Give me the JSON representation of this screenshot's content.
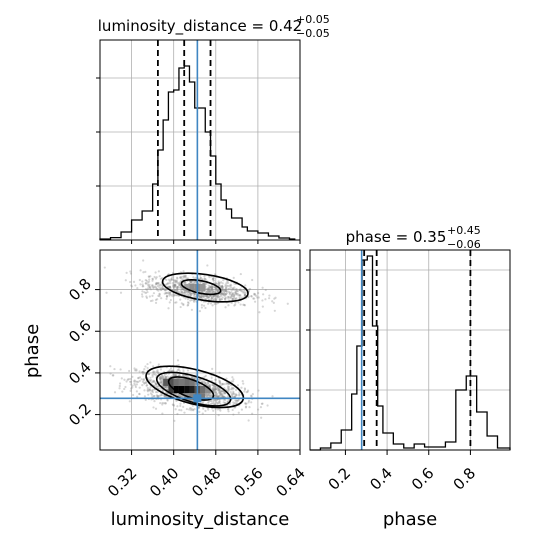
{
  "chart_data": [
    {
      "type": "histogram",
      "panel": "luminosity_distance-marginal",
      "title": {
        "prefix": "luminosity_distance = ",
        "median": "0.42",
        "upper": "+0.05",
        "lower": "−0.05"
      },
      "xlim": [
        0.26,
        0.64
      ],
      "ylim": [
        0,
        1.0
      ],
      "grid": true,
      "bins": [
        [
          0.26,
          0.28,
          0.005
        ],
        [
          0.28,
          0.3,
          0.012
        ],
        [
          0.3,
          0.32,
          0.04
        ],
        [
          0.32,
          0.34,
          0.1
        ],
        [
          0.34,
          0.35,
          0.145
        ],
        [
          0.35,
          0.36,
          0.145
        ],
        [
          0.36,
          0.37,
          0.28
        ],
        [
          0.37,
          0.38,
          0.45
        ],
        [
          0.38,
          0.39,
          0.6
        ],
        [
          0.39,
          0.4,
          0.74
        ],
        [
          0.4,
          0.41,
          0.75
        ],
        [
          0.41,
          0.42,
          0.86
        ],
        [
          0.42,
          0.43,
          0.87
        ],
        [
          0.43,
          0.44,
          0.79
        ],
        [
          0.44,
          0.45,
          0.66
        ],
        [
          0.45,
          0.46,
          0.66
        ],
        [
          0.46,
          0.47,
          0.54
        ],
        [
          0.47,
          0.48,
          0.42
        ],
        [
          0.48,
          0.49,
          0.28
        ],
        [
          0.49,
          0.5,
          0.2
        ],
        [
          0.5,
          0.51,
          0.155
        ],
        [
          0.51,
          0.52,
          0.11
        ],
        [
          0.52,
          0.53,
          0.11
        ],
        [
          0.53,
          0.54,
          0.065
        ],
        [
          0.54,
          0.56,
          0.045
        ],
        [
          0.56,
          0.58,
          0.035
        ],
        [
          0.58,
          0.6,
          0.02
        ],
        [
          0.6,
          0.62,
          0.01
        ],
        [
          0.62,
          0.63,
          0.005
        ]
      ],
      "quantiles": [
        0.37,
        0.42,
        0.47
      ],
      "truth": 0.445
    },
    {
      "type": "histogram",
      "panel": "phase-marginal",
      "title": {
        "prefix": "phase = ",
        "median": "0.35",
        "upper": "+0.45",
        "lower": "−0.06"
      },
      "xlim": [
        0.03,
        0.99
      ],
      "ylim": [
        0,
        1.0
      ],
      "grid": true,
      "xticks": [
        "0.2",
        "0.4",
        "0.6",
        "0.8"
      ],
      "xtick_values": [
        0.2,
        0.4,
        0.6,
        0.8
      ],
      "xlabel": "phase",
      "bins": [
        [
          0.03,
          0.08,
          0.0
        ],
        [
          0.08,
          0.13,
          0.01
        ],
        [
          0.13,
          0.18,
          0.035
        ],
        [
          0.18,
          0.23,
          0.1
        ],
        [
          0.23,
          0.255,
          0.28
        ],
        [
          0.255,
          0.28,
          0.52
        ],
        [
          0.28,
          0.305,
          0.95
        ],
        [
          0.305,
          0.33,
          0.97
        ],
        [
          0.33,
          0.355,
          0.62
        ],
        [
          0.355,
          0.38,
          0.22
        ],
        [
          0.38,
          0.43,
          0.085
        ],
        [
          0.43,
          0.48,
          0.03
        ],
        [
          0.48,
          0.53,
          0.01
        ],
        [
          0.53,
          0.58,
          0.03
        ],
        [
          0.58,
          0.63,
          0.015
        ],
        [
          0.63,
          0.68,
          0.015
        ],
        [
          0.68,
          0.73,
          0.04
        ],
        [
          0.73,
          0.78,
          0.3
        ],
        [
          0.78,
          0.83,
          0.37
        ],
        [
          0.83,
          0.88,
          0.19
        ],
        [
          0.88,
          0.93,
          0.07
        ],
        [
          0.93,
          0.99,
          0.01
        ]
      ],
      "quantiles": [
        0.29,
        0.35,
        0.8
      ],
      "truth": 0.278
    },
    {
      "type": "scatter-contour",
      "panel": "joint-2d",
      "xlim": [
        0.26,
        0.64
      ],
      "ylim": [
        0.03,
        0.99
      ],
      "grid": true,
      "xticks": [
        "0.32",
        "0.40",
        "0.48",
        "0.56",
        "0.64"
      ],
      "xtick_values": [
        0.32,
        0.4,
        0.48,
        0.56,
        0.64
      ],
      "yticks": [
        "0.2",
        "0.4",
        "0.6",
        "0.8"
      ],
      "ytick_values": [
        0.2,
        0.4,
        0.6,
        0.8
      ],
      "xlabel": "luminosity_distance",
      "ylabel": "phase",
      "truth": [
        0.445,
        0.278
      ],
      "clusters": [
        {
          "cx": 0.43,
          "cy": 0.32,
          "sx": 0.05,
          "sy": 0.045,
          "rho": -0.45,
          "n": 1500
        },
        {
          "cx": 0.445,
          "cy": 0.8,
          "sx": 0.052,
          "sy": 0.035,
          "rho": -0.3,
          "n": 950
        }
      ],
      "contours": [
        {
          "cx": 0.433,
          "cy": 0.325,
          "rx": 0.045,
          "ry": 0.042,
          "rot": 0.35
        },
        {
          "cx": 0.438,
          "cy": 0.322,
          "rx": 0.073,
          "ry": 0.062,
          "rot": 0.3
        },
        {
          "cx": 0.44,
          "cy": 0.333,
          "rx": 0.095,
          "ry": 0.082,
          "rot": 0.25
        },
        {
          "cx": 0.452,
          "cy": 0.812,
          "rx": 0.038,
          "ry": 0.03,
          "rot": 0.2
        },
        {
          "cx": 0.46,
          "cy": 0.81,
          "rx": 0.082,
          "ry": 0.062,
          "rot": 0.15
        }
      ],
      "density_cells": [
        {
          "x": 0.405,
          "y": 0.32,
          "v": 1.0
        },
        {
          "x": 0.415,
          "y": 0.32,
          "v": 1.0
        },
        {
          "x": 0.425,
          "y": 0.32,
          "v": 0.95
        },
        {
          "x": 0.435,
          "y": 0.32,
          "v": 0.85
        },
        {
          "x": 0.395,
          "y": 0.32,
          "v": 0.7
        },
        {
          "x": 0.445,
          "y": 0.32,
          "v": 0.6
        },
        {
          "x": 0.385,
          "y": 0.355,
          "v": 0.55
        },
        {
          "x": 0.395,
          "y": 0.355,
          "v": 0.6
        },
        {
          "x": 0.405,
          "y": 0.355,
          "v": 0.45
        },
        {
          "x": 0.415,
          "y": 0.355,
          "v": 0.4
        },
        {
          "x": 0.425,
          "y": 0.355,
          "v": 0.45
        },
        {
          "x": 0.435,
          "y": 0.355,
          "v": 0.4
        },
        {
          "x": 0.445,
          "y": 0.285,
          "v": 0.45
        },
        {
          "x": 0.455,
          "y": 0.285,
          "v": 0.4
        },
        {
          "x": 0.425,
          "y": 0.285,
          "v": 0.3
        },
        {
          "x": 0.435,
          "y": 0.285,
          "v": 0.35
        },
        {
          "x": 0.465,
          "y": 0.32,
          "v": 0.3
        },
        {
          "x": 0.455,
          "y": 0.32,
          "v": 0.45
        },
        {
          "x": 0.435,
          "y": 0.81,
          "v": 0.3
        },
        {
          "x": 0.445,
          "y": 0.81,
          "v": 0.3
        },
        {
          "x": 0.455,
          "y": 0.81,
          "v": 0.25
        },
        {
          "x": 0.425,
          "y": 0.81,
          "v": 0.2
        }
      ]
    }
  ],
  "colors": {
    "truth": "#3f86c2",
    "line": "#000000",
    "grid": "#b0b0b0"
  },
  "labels": {
    "x_lumi": "luminosity_distance",
    "x_phase": "phase",
    "y_phase": "phase"
  }
}
